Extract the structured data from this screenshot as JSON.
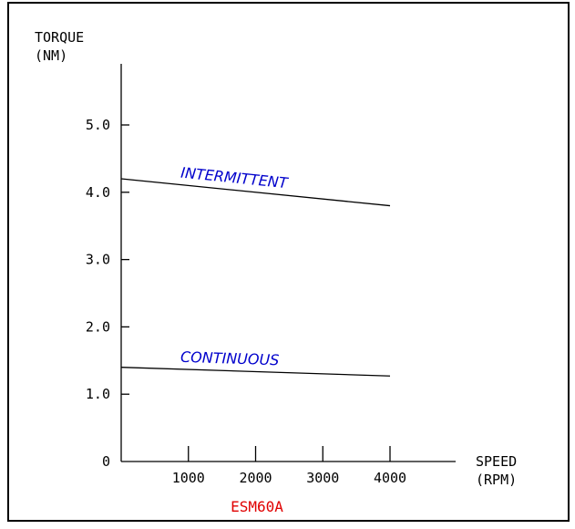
{
  "chart_data": {
    "type": "line",
    "ylabel_line1": "TORQUE",
    "ylabel_line2": "(NM)",
    "xlabel_line1": "SPEED",
    "xlabel_line2": "(RPM)",
    "xlim": [
      0,
      4000
    ],
    "ylim": [
      0,
      5.0
    ],
    "xticks": [
      1000,
      2000,
      3000,
      4000
    ],
    "xtick_labels": [
      "1000",
      "2000",
      "3000",
      "4000"
    ],
    "yticks": [
      0,
      1.0,
      2.0,
      3.0,
      4.0,
      5.0
    ],
    "ytick_labels": [
      "0",
      "1.0",
      "2.0",
      "3.0",
      "4.0",
      "5.0"
    ],
    "grid": false,
    "series": [
      {
        "name": "INTERMITTENT",
        "x": [
          0,
          4000
        ],
        "y": [
          4.2,
          3.8
        ]
      },
      {
        "name": "CONTINUOUS",
        "x": [
          0,
          4000
        ],
        "y": [
          1.4,
          1.27
        ]
      }
    ],
    "model": "ESM60A",
    "colors": {
      "series_label": "#0000cc",
      "model": "#e00000",
      "axes": "#000000"
    }
  }
}
